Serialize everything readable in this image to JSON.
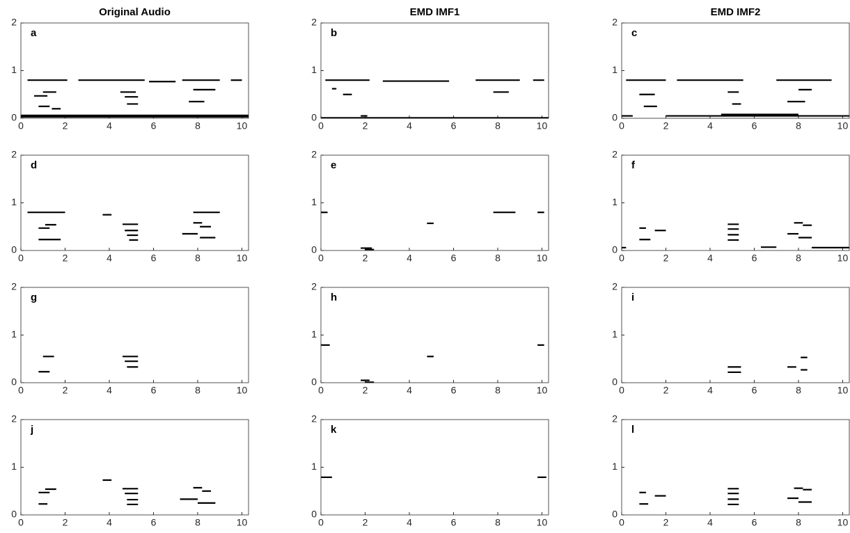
{
  "chart_data": [
    {
      "type": "spectrogram",
      "title": "Original Audio",
      "label": "a",
      "color": "#000000",
      "xlim": [
        0,
        10.3
      ],
      "ylim": [
        0,
        2
      ],
      "xticks": [
        0,
        2,
        4,
        6,
        8,
        10
      ],
      "yticks": [
        0,
        1,
        2
      ],
      "x_start": [
        0.3,
        2.6,
        5.8,
        7.3,
        9.5,
        0.6,
        1,
        0.8,
        4.5,
        4.7,
        4.8,
        7.6,
        7.8,
        0,
        0,
        1.4
      ],
      "x_end": [
        2.1,
        5.6,
        7,
        9,
        10,
        1.2,
        1.6,
        1.3,
        5.2,
        5.3,
        5.3,
        8.3,
        8.8,
        10.3,
        10.3,
        1.8
      ],
      "y": [
        0.8,
        0.8,
        0.77,
        0.8,
        0.8,
        0.47,
        0.55,
        0.25,
        0.55,
        0.45,
        0.3,
        0.35,
        0.6,
        0.03,
        0.06,
        0.2
      ]
    },
    {
      "type": "spectrogram",
      "title": "EMD IMF1",
      "label": "b",
      "color": "#000000",
      "xlim": [
        0,
        10.3
      ],
      "ylim": [
        0,
        2
      ],
      "xticks": [
        0,
        2,
        4,
        6,
        8,
        10
      ],
      "yticks": [
        0,
        1,
        2
      ],
      "x_start": [
        0.2,
        2.8,
        7,
        9.6,
        0.5,
        1,
        1.8,
        7.8,
        0
      ],
      "x_end": [
        2.2,
        5.8,
        9,
        10.1,
        0.7,
        1.4,
        2.1,
        8.5,
        10.3
      ],
      "y": [
        0.8,
        0.78,
        0.8,
        0.8,
        0.62,
        0.5,
        0.05,
        0.55,
        0.01
      ]
    },
    {
      "type": "spectrogram",
      "title": "EMD IMF2",
      "label": "c",
      "color": "#000000",
      "xlim": [
        0,
        10.3
      ],
      "ylim": [
        0,
        2
      ],
      "xticks": [
        0,
        2,
        4,
        6,
        8,
        10
      ],
      "yticks": [
        0,
        1,
        2
      ],
      "x_start": [
        0.2,
        2.5,
        7,
        0.8,
        1,
        4.8,
        5,
        7.5,
        8,
        0,
        2,
        4.5
      ],
      "x_end": [
        2,
        5.5,
        9.5,
        1.5,
        1.6,
        5.3,
        5.4,
        8.3,
        8.6,
        0.5,
        10.3,
        8
      ],
      "y": [
        0.8,
        0.8,
        0.8,
        0.5,
        0.25,
        0.55,
        0.3,
        0.35,
        0.6,
        0.05,
        0.05,
        0.08
      ]
    },
    {
      "type": "spectrogram",
      "label": "d",
      "color": "#000000",
      "xlim": [
        0,
        10.3
      ],
      "ylim": [
        0,
        2
      ],
      "xticks": [
        0,
        2,
        4,
        6,
        8,
        10
      ],
      "yticks": [
        0,
        1,
        2
      ],
      "x_start": [
        0.3,
        3.7,
        7.8,
        0.8,
        1.1,
        0.8,
        4.6,
        4.7,
        4.8,
        4.9,
        7.3,
        7.8,
        8.1,
        8.1
      ],
      "x_end": [
        2,
        4.1,
        9,
        1.3,
        1.6,
        1.8,
        5.3,
        5.3,
        5.3,
        5.3,
        8,
        8.2,
        8.6,
        8.8
      ],
      "y": [
        0.8,
        0.75,
        0.8,
        0.47,
        0.54,
        0.23,
        0.55,
        0.42,
        0.32,
        0.22,
        0.35,
        0.58,
        0.5,
        0.27
      ]
    },
    {
      "type": "spectrogram",
      "label": "e",
      "color": "#000000",
      "xlim": [
        0,
        10.3
      ],
      "ylim": [
        0,
        2
      ],
      "xticks": [
        0,
        2,
        4,
        6,
        8,
        10
      ],
      "yticks": [
        0,
        1,
        2
      ],
      "x_start": [
        0,
        4.8,
        7.8,
        9.8,
        1.8,
        2
      ],
      "x_end": [
        0.3,
        5.1,
        8.8,
        10.1,
        2.3,
        2.4
      ],
      "y": [
        0.8,
        0.57,
        0.8,
        0.8,
        0.05,
        0.02
      ]
    },
    {
      "type": "spectrogram",
      "label": "f",
      "color": "#000000",
      "xlim": [
        0,
        10.3
      ],
      "ylim": [
        0,
        2
      ],
      "xticks": [
        0,
        2,
        4,
        6,
        8,
        10
      ],
      "yticks": [
        0,
        1,
        2
      ],
      "x_start": [
        0,
        0.8,
        0.8,
        1.5,
        4.8,
        4.8,
        4.8,
        4.8,
        6.3,
        7.5,
        7.8,
        8.2,
        8,
        8.6
      ],
      "x_end": [
        0.2,
        1.1,
        1.3,
        2,
        5.3,
        5.3,
        5.3,
        5.3,
        7,
        8,
        8.2,
        8.6,
        8.6,
        10.3
      ],
      "y": [
        0.06,
        0.47,
        0.23,
        0.42,
        0.55,
        0.45,
        0.33,
        0.22,
        0.07,
        0.35,
        0.58,
        0.53,
        0.27,
        0.06
      ]
    },
    {
      "type": "spectrogram",
      "label": "g",
      "color": "#000000",
      "xlim": [
        0,
        10.3
      ],
      "ylim": [
        0,
        2
      ],
      "xticks": [
        0,
        2,
        4,
        6,
        8,
        10
      ],
      "yticks": [
        0,
        1,
        2
      ],
      "x_start": [
        1,
        0.8,
        4.6,
        4.7,
        4.8
      ],
      "x_end": [
        1.5,
        1.3,
        5.3,
        5.3,
        5.3
      ],
      "y": [
        0.55,
        0.23,
        0.55,
        0.45,
        0.33
      ]
    },
    {
      "type": "spectrogram",
      "label": "h",
      "color": "#000000",
      "xlim": [
        0,
        10.3
      ],
      "ylim": [
        0,
        2
      ],
      "xticks": [
        0,
        2,
        4,
        6,
        8,
        10
      ],
      "yticks": [
        0,
        1,
        2
      ],
      "x_start": [
        0,
        4.8,
        9.8,
        1.8,
        2
      ],
      "x_end": [
        0.4,
        5.1,
        10.1,
        2.2,
        2.4
      ],
      "y": [
        0.79,
        0.55,
        0.79,
        0.05,
        0.01
      ]
    },
    {
      "type": "spectrogram",
      "label": "i",
      "color": "#000000",
      "xlim": [
        0,
        10.3
      ],
      "ylim": [
        0,
        2
      ],
      "xticks": [
        0,
        2,
        4,
        6,
        8,
        10
      ],
      "yticks": [
        0,
        1,
        2
      ],
      "x_start": [
        4.8,
        4.8,
        7.5,
        8.1,
        8.1
      ],
      "x_end": [
        5.4,
        5.4,
        7.9,
        8.4,
        8.4
      ],
      "y": [
        0.33,
        0.22,
        0.33,
        0.53,
        0.27
      ]
    },
    {
      "type": "spectrogram",
      "label": "j",
      "color": "#000000",
      "xlim": [
        0,
        10.3
      ],
      "ylim": [
        0,
        2
      ],
      "xticks": [
        0,
        2,
        4,
        6,
        8,
        10
      ],
      "yticks": [
        0,
        1,
        2
      ],
      "x_start": [
        0.8,
        1.1,
        0.8,
        3.7,
        4.6,
        4.7,
        4.8,
        4.8,
        7.2,
        7.8,
        8.2,
        8
      ],
      "x_end": [
        1.3,
        1.6,
        1.2,
        4.1,
        5.3,
        5.3,
        5.3,
        5.3,
        8,
        8.2,
        8.6,
        8.8
      ],
      "y": [
        0.47,
        0.54,
        0.23,
        0.73,
        0.55,
        0.45,
        0.32,
        0.22,
        0.33,
        0.57,
        0.5,
        0.25
      ]
    },
    {
      "type": "spectrogram",
      "label": "k",
      "color": "#000000",
      "xlim": [
        0,
        10.3
      ],
      "ylim": [
        0,
        2
      ],
      "xticks": [
        0,
        2,
        4,
        6,
        8,
        10
      ],
      "yticks": [
        0,
        1,
        2
      ],
      "x_start": [
        0,
        9.8
      ],
      "x_end": [
        0.5,
        10.2
      ],
      "y": [
        0.79,
        0.79
      ]
    },
    {
      "type": "spectrogram",
      "label": "l",
      "color": "#000000",
      "xlim": [
        0,
        10.3
      ],
      "ylim": [
        0,
        2
      ],
      "xticks": [
        0,
        2,
        4,
        6,
        8,
        10
      ],
      "yticks": [
        0,
        1,
        2
      ],
      "x_start": [
        0.8,
        0.8,
        1.5,
        4.8,
        4.8,
        4.8,
        4.8,
        7.5,
        7.8,
        8.2,
        8
      ],
      "x_end": [
        1.1,
        1.2,
        2,
        5.3,
        5.3,
        5.3,
        5.3,
        8,
        8.2,
        8.6,
        8.6
      ],
      "y": [
        0.47,
        0.23,
        0.4,
        0.55,
        0.45,
        0.33,
        0.22,
        0.35,
        0.56,
        0.53,
        0.27
      ]
    }
  ]
}
